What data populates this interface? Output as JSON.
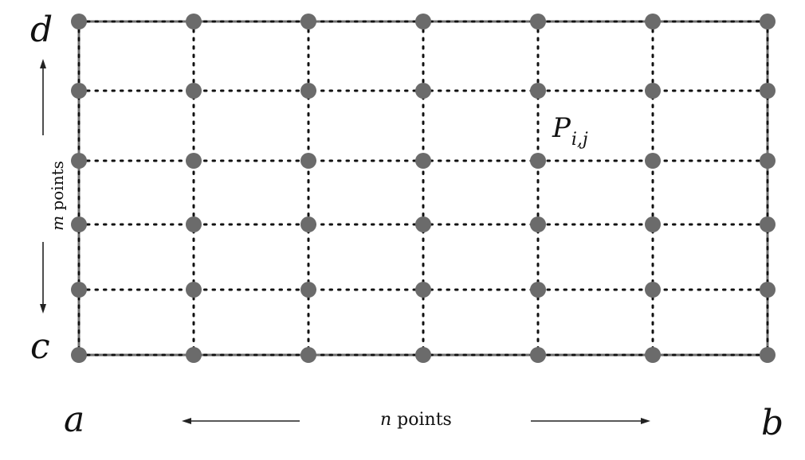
{
  "labels": {
    "d": "d",
    "c": "c",
    "a": "a",
    "b": "b",
    "point_main": "P",
    "point_sub": "i,j",
    "n_var": "n",
    "n_text": " points",
    "m_var": "m",
    "m_text": " points"
  },
  "grid": {
    "columns": 7,
    "rows": 6,
    "point_color": "#6b6b6b",
    "line_color": "#6f6f6f",
    "dot_color": "#111111"
  }
}
